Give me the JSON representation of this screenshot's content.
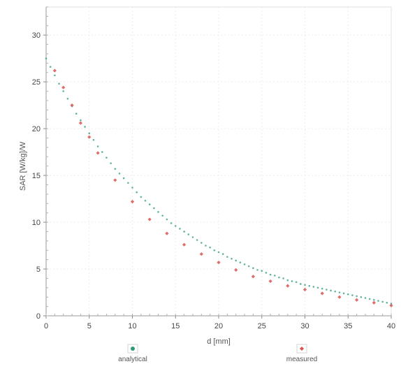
{
  "chart_data": {
    "type": "scatter",
    "xlabel": "d [mm]",
    "ylabel": "SAR [W/kg]/W",
    "xlim": [
      0,
      40
    ],
    "ylim": [
      0,
      33
    ],
    "xticks": [
      0,
      5,
      10,
      15,
      20,
      25,
      30,
      35,
      40
    ],
    "yticks": [
      0,
      5,
      10,
      15,
      20,
      25,
      30
    ],
    "grid": true,
    "legend_position": "bottom",
    "series": [
      {
        "name": "analytical",
        "color": "#2e9c7a",
        "marker": "circle",
        "x": [
          0,
          0.5,
          1,
          1.5,
          2,
          2.5,
          3,
          3.5,
          4,
          4.5,
          5,
          5.5,
          6,
          6.5,
          7,
          7.5,
          8,
          8.5,
          9,
          9.5,
          10,
          10.5,
          11,
          11.5,
          12,
          12.5,
          13,
          13.5,
          14,
          14.5,
          15,
          15.5,
          16,
          16.5,
          17,
          17.5,
          18,
          18.5,
          19,
          19.5,
          20,
          20.5,
          21,
          21.5,
          22,
          22.5,
          23,
          23.5,
          24,
          24.5,
          25,
          25.5,
          26,
          26.5,
          27,
          27.5,
          28,
          28.5,
          29,
          29.5,
          30,
          30.5,
          31,
          31.5,
          32,
          32.5,
          33,
          33.5,
          34,
          34.5,
          35,
          35.5,
          36,
          36.5,
          37,
          37.5,
          38,
          38.5,
          39,
          39.5,
          40
        ],
        "y": [
          27.5,
          26.6,
          25.7,
          24.8,
          24.0,
          23.2,
          22.4,
          21.6,
          20.9,
          20.2,
          19.5,
          18.8,
          18.1,
          17.5,
          16.9,
          16.3,
          15.7,
          15.2,
          14.7,
          14.2,
          13.7,
          13.2,
          12.7,
          12.3,
          11.9,
          11.5,
          11.1,
          10.7,
          10.3,
          9.9,
          9.6,
          9.3,
          9.0,
          8.7,
          8.4,
          8.1,
          7.8,
          7.5,
          7.3,
          7.0,
          6.8,
          6.6,
          6.3,
          6.1,
          5.9,
          5.7,
          5.5,
          5.3,
          5.1,
          4.9,
          4.8,
          4.6,
          4.4,
          4.3,
          4.1,
          4.0,
          3.8,
          3.7,
          3.6,
          3.4,
          3.3,
          3.2,
          3.1,
          3.0,
          2.9,
          2.8,
          2.7,
          2.6,
          2.5,
          2.4,
          2.3,
          2.2,
          2.1,
          2.0,
          1.9,
          1.8,
          1.7,
          1.6,
          1.5,
          1.4,
          1.3
        ]
      },
      {
        "name": "measured",
        "color": "#d9534f",
        "marker": "diamond",
        "x": [
          1,
          2,
          3,
          4,
          5,
          6,
          8,
          10,
          12,
          14,
          16,
          18,
          20,
          22,
          24,
          26,
          28,
          30,
          32,
          34,
          36,
          38,
          40
        ],
        "y": [
          26.2,
          24.4,
          22.5,
          20.6,
          19.1,
          17.4,
          14.5,
          12.2,
          10.3,
          8.8,
          7.6,
          6.6,
          5.7,
          4.9,
          4.2,
          3.7,
          3.2,
          2.8,
          2.4,
          2.0,
          1.7,
          1.4,
          1.1
        ]
      }
    ]
  }
}
